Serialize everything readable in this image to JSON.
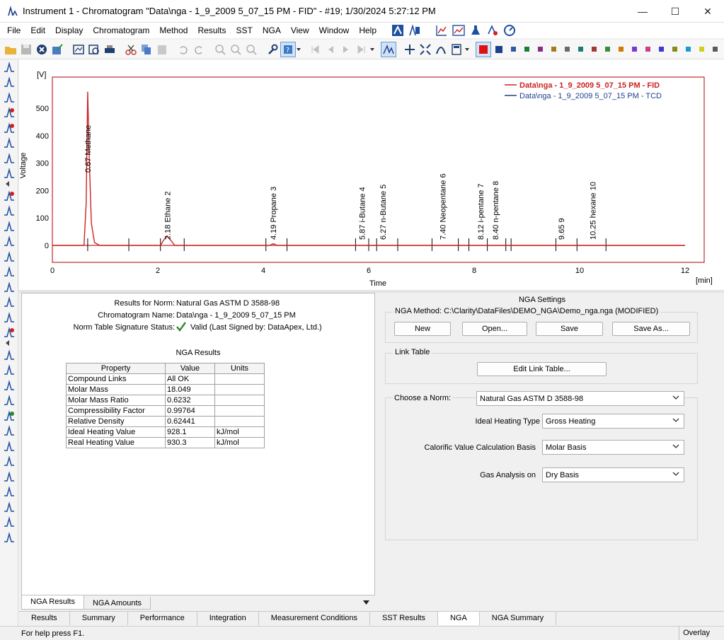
{
  "window": {
    "title": "Instrument 1 - Chromatogram \"Data\\nga - 1_9_2009 5_07_15 PM - FID\" - #19;    1/30/2024    5:27:12 PM",
    "minimize": "—",
    "maximize": "☐",
    "close": "✕"
  },
  "menu": {
    "items": [
      "File",
      "Edit",
      "Display",
      "Chromatogram",
      "Method",
      "Results",
      "SST",
      "NGA",
      "View",
      "Window",
      "Help"
    ]
  },
  "colors": {
    "accent": "#0054a6",
    "fid_trace": "#cc2222",
    "tcd_trace": "#1f3f8f",
    "frame": "#b00000",
    "palette": [
      "#2b5aa8",
      "#1a7d3a",
      "#8a2b8a",
      "#a07d1a",
      "#6a6a6a",
      "#1a7d7d",
      "#a03a3a",
      "#3a8a3a",
      "#d07a00",
      "#7a3ad0",
      "#d03a8a",
      "#3a3ad0",
      "#8a8a1a",
      "#1a9ad0",
      "#d0d01a",
      "#5a5a5a",
      "#d06a6a",
      "#3a9a6a"
    ]
  },
  "chart": {
    "y_unit": "[V]",
    "y_title": "Voltage",
    "x_title": "Time",
    "x_unit": "[min]",
    "legend": [
      {
        "label": "Data\\nga - 1_9_2009 5_07_15 PM - FID",
        "color": "#cc2222",
        "bold": true
      },
      {
        "label": "Data\\nga - 1_9_2009 5_07_15 PM - TCD",
        "color": "#1f3f8f",
        "bold": false
      }
    ]
  },
  "chart_data": {
    "type": "line",
    "xlabel": "Time",
    "ylabel": "Voltage",
    "xlim": [
      0,
      12
    ],
    "ylim": [
      -20,
      600
    ],
    "x_ticks": [
      "0",
      "2",
      "4",
      "6",
      "8",
      "10",
      "12"
    ],
    "y_ticks": [
      "0",
      "100",
      "200",
      "300",
      "400",
      "500"
    ],
    "series": [
      {
        "name": "Data\\nga - 1_9_2009 5_07_15 PM - FID",
        "x": [
          0,
          0.6,
          0.64,
          0.67,
          0.7,
          0.74,
          0.8,
          0.9,
          2.05,
          2.12,
          2.18,
          2.25,
          2.32,
          4.12,
          4.19,
          4.26,
          12
        ],
        "y": [
          0,
          0,
          150,
          560,
          320,
          80,
          10,
          0,
          0,
          22,
          34,
          18,
          0,
          0,
          6,
          0,
          0
        ]
      }
    ],
    "peaks": [
      {
        "time": "0.67",
        "name": "Methane",
        "number": ""
      },
      {
        "time": "2.18",
        "name": "Ethane",
        "number": "2"
      },
      {
        "time": "4.19",
        "name": "Propane",
        "number": "3"
      },
      {
        "time": "5.87",
        "name": "i-Butane",
        "number": "4"
      },
      {
        "time": "6.27",
        "name": "n-Butane",
        "number": "5"
      },
      {
        "time": "7.40",
        "name": "Neopentane",
        "number": "6"
      },
      {
        "time": "8.12",
        "name": "i-pentane",
        "number": "7"
      },
      {
        "time": "8.40",
        "name": "n-pentane",
        "number": "8"
      },
      {
        "time": "9.65",
        "name": "",
        "number": "9"
      },
      {
        "time": "10.25",
        "name": "hexane",
        "number": "10"
      }
    ],
    "peak_label_text": [
      "0.67 Methane",
      "2.18 Ethane  2",
      "4.19 Propane  3",
      "5.87 i-Butane  4",
      "6.27 n-Butane  5",
      "7.40 Neopentane  6",
      "8.12 i-pentane  7",
      "8.40 n-pentane  8",
      "9.65   9",
      "10.25 hexane  10"
    ],
    "baseline_markers": [
      0.67,
      1.45,
      2.05,
      2.5,
      4.05,
      4.45,
      5.75,
      6.0,
      6.15,
      6.55,
      7.2,
      7.7,
      7.9,
      8.25,
      8.6,
      8.7,
      9.55,
      9.95,
      10.5
    ]
  },
  "results": {
    "norm_label": "Results for Norm:",
    "norm_value": "Natural Gas ASTM D 3588-98",
    "chrom_label": "Chromatogram Name:",
    "chrom_value": "Data\\nga - 1_9_2009 5_07_15 PM",
    "sig_label": "Norm Table Signature Status:",
    "sig_value": "Valid (Last Signed by: DataApex, Ltd.)",
    "section_title": "NGA Results",
    "columns": [
      "Property",
      "Value",
      "Units"
    ],
    "rows": [
      [
        "Compound Links",
        "All OK",
        ""
      ],
      [
        "Molar Mass",
        "18.049",
        ""
      ],
      [
        "Molar Mass Ratio",
        "0.6232",
        ""
      ],
      [
        "Compressibility Factor",
        "0.99764",
        ""
      ],
      [
        "Relative Density",
        "0.62441",
        ""
      ],
      [
        "Ideal Heating Value",
        "928.1",
        "kJ/mol"
      ],
      [
        "Real Heating Value",
        "930.3",
        "kJ/mol"
      ]
    ],
    "tabs": [
      "NGA Results",
      "NGA Amounts"
    ]
  },
  "settings": {
    "title": "NGA Settings",
    "method_label": "NGA Method: C:\\Clarity\\DataFiles\\DEMO_NGA\\Demo_nga.nga (MODIFIED)",
    "buttons": {
      "new": "New",
      "open": "Open...",
      "save": "Save",
      "save_as": "Save As..."
    },
    "link_table_title": "Link Table",
    "edit_link_table": "Edit Link Table...",
    "norm_label": "Choose a Norm:",
    "norm_value": "Natural Gas ASTM D 3588-98",
    "heating_label": "Ideal Heating Type",
    "heating_value": "Gross Heating",
    "calorific_label": "Calorific Value Calculation Basis",
    "calorific_value": "Molar Basis",
    "gas_label": "Gas Analysis on",
    "gas_value": "Dry Basis"
  },
  "main_tabs": [
    "Results",
    "Summary",
    "Performance",
    "Integration",
    "Measurement Conditions",
    "SST Results",
    "NGA",
    "NGA Summary"
  ],
  "status": {
    "help": "For help press F1.",
    "mode": "Overlay"
  }
}
